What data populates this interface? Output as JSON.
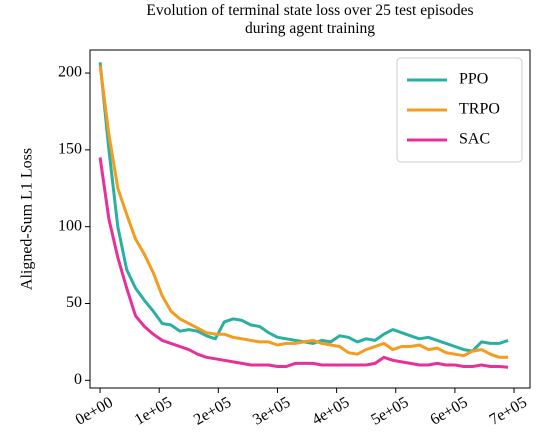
{
  "chart_data": {
    "type": "line",
    "title": "Evolution of terminal state loss over 25 test episodes during agent training",
    "ylabel": "Aligned-Sum L1 Loss",
    "x": [
      0,
      15000,
      30000,
      45000,
      60000,
      75000,
      90000,
      105000,
      120000,
      135000,
      150000,
      165000,
      180000,
      195000,
      210000,
      225000,
      240000,
      255000,
      270000,
      285000,
      300000,
      315000,
      330000,
      345000,
      360000,
      375000,
      390000,
      405000,
      420000,
      435000,
      450000,
      465000,
      480000,
      495000,
      510000,
      525000,
      540000,
      555000,
      570000,
      585000,
      600000,
      615000,
      630000,
      645000,
      660000,
      675000,
      690000
    ],
    "series": [
      {
        "name": "PPO",
        "color": "#2ab0a0",
        "values": [
          207,
          150,
          100,
          72,
          60,
          52,
          45,
          37,
          36,
          32,
          33,
          32,
          29,
          27,
          38,
          40,
          39,
          36,
          35,
          31,
          28,
          27,
          26,
          25,
          24,
          26,
          25,
          29,
          28,
          25,
          27,
          26,
          30,
          33,
          31,
          29,
          27,
          28,
          26,
          24,
          22,
          20,
          19,
          25,
          24,
          24,
          26
        ]
      },
      {
        "name": "TRPO",
        "color": "#f39c1f",
        "values": [
          205,
          160,
          125,
          108,
          92,
          82,
          70,
          55,
          45,
          40,
          37,
          34,
          31,
          30,
          30,
          28,
          27,
          26,
          25,
          25,
          23,
          24,
          24,
          25,
          26,
          24,
          23,
          22,
          18,
          17,
          20,
          22,
          24,
          20,
          22,
          22,
          23,
          20,
          21,
          18,
          17,
          16,
          19,
          20,
          17,
          15,
          15
        ]
      },
      {
        "name": "SAC",
        "color": "#e8309a",
        "values": [
          145,
          105,
          80,
          60,
          42,
          35,
          30,
          26,
          24,
          22,
          20,
          17,
          15,
          14,
          13,
          12,
          11,
          10,
          10,
          10,
          9,
          9,
          11,
          11,
          11,
          10,
          10,
          10,
          10,
          10,
          10,
          11,
          15,
          13,
          12,
          11,
          10,
          10,
          11,
          10,
          10,
          9,
          9,
          10,
          9,
          9,
          8.5
        ]
      }
    ],
    "xlim": [
      -17000,
      727000
    ],
    "ylim": [
      -5,
      215
    ],
    "xticks": [
      {
        "value": 0,
        "label": "0e+00"
      },
      {
        "value": 100000,
        "label": "1e+05"
      },
      {
        "value": 200000,
        "label": "2e+05"
      },
      {
        "value": 300000,
        "label": "3e+05"
      },
      {
        "value": 400000,
        "label": "4e+05"
      },
      {
        "value": 500000,
        "label": "5e+05"
      },
      {
        "value": 600000,
        "label": "6e+05"
      },
      {
        "value": 700000,
        "label": "7e+05"
      }
    ],
    "yticks": [
      0,
      50,
      100,
      150,
      200
    ],
    "legend": "upper right",
    "grid": false
  }
}
